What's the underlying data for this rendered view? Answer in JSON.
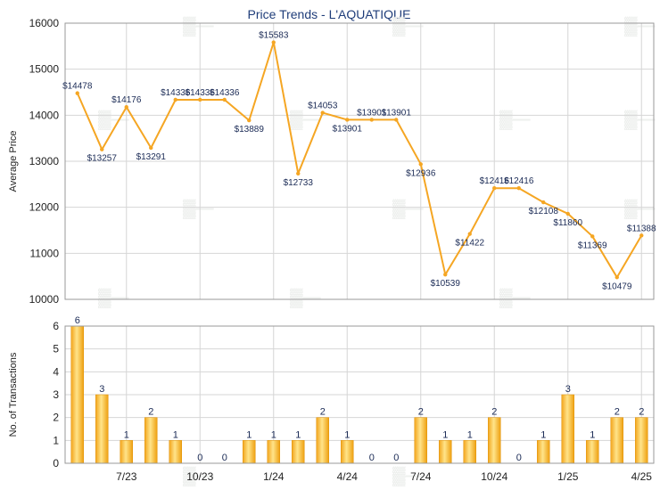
{
  "chart_data": [
    {
      "type": "line",
      "title": "Price Trends - L'AQUATIQUE",
      "ylabel": "Average Price",
      "ylim": [
        10000,
        16000
      ],
      "yticks": [
        "10000",
        "11000",
        "12000",
        "13000",
        "14000",
        "15000",
        "16000"
      ],
      "values": [
        14478,
        13257,
        14176,
        13291,
        14336,
        14336,
        14336,
        13889,
        15583,
        12733,
        14053,
        13901,
        13901,
        13901,
        12936,
        10539,
        11422,
        12416,
        12416,
        12108,
        11860,
        11369,
        10479,
        11388
      ],
      "labels": [
        "$14478",
        "$13257",
        "$14176",
        "$13291",
        "$14336",
        "$14336",
        "$14336",
        "$13889",
        "$15583",
        "$12733",
        "$14053",
        "$13901",
        "$13901",
        "$13901",
        "$12936",
        "$10539",
        "$11422",
        "$12416",
        "$12416",
        "$12108",
        "$11860",
        "$11369",
        "$10479",
        "$11388"
      ],
      "color": "#f5a623"
    },
    {
      "type": "bar",
      "ylabel": "No. of Transactions",
      "ylim": [
        0,
        6
      ],
      "yticks": [
        "0",
        "1",
        "2",
        "3",
        "4",
        "5",
        "6"
      ],
      "values": [
        6,
        3,
        1,
        2,
        1,
        0,
        0,
        1,
        1,
        1,
        2,
        1,
        0,
        0,
        2,
        1,
        1,
        2,
        0,
        1,
        3,
        1,
        2,
        2
      ],
      "xtick_labels": [
        "7/23",
        "10/23",
        "1/24",
        "4/24",
        "7/24",
        "10/24",
        "1/25",
        "4/25"
      ],
      "xtick_index": [
        2,
        5,
        8,
        11,
        14,
        17,
        20,
        23
      ],
      "color": "#f5a623"
    }
  ]
}
